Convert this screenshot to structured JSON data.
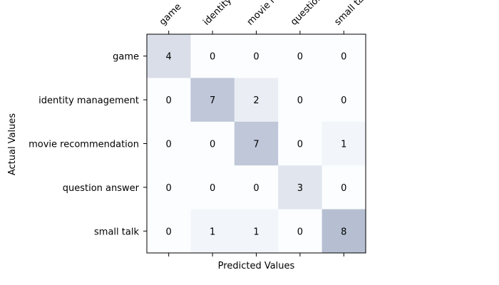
{
  "chart_data": {
    "type": "heatmap",
    "title": "",
    "xlabel": "Predicted Values",
    "ylabel": "Actual Values",
    "x_categories": [
      "game",
      "identity management",
      "movie recommendation",
      "question answer",
      "small talk"
    ],
    "y_categories": [
      "game",
      "identity management",
      "movie recommendation",
      "question answer",
      "small talk"
    ],
    "values": [
      [
        4,
        0,
        0,
        0,
        0
      ],
      [
        0,
        7,
        2,
        0,
        0
      ],
      [
        0,
        0,
        7,
        0,
        1
      ],
      [
        0,
        0,
        0,
        3,
        0
      ],
      [
        0,
        1,
        1,
        0,
        8
      ]
    ],
    "colorscale": {
      "low": "#fbfdff",
      "high": "#b6bfd2"
    },
    "x_tick_position": "top",
    "x_tick_rotation_deg": 45,
    "grid": false
  }
}
